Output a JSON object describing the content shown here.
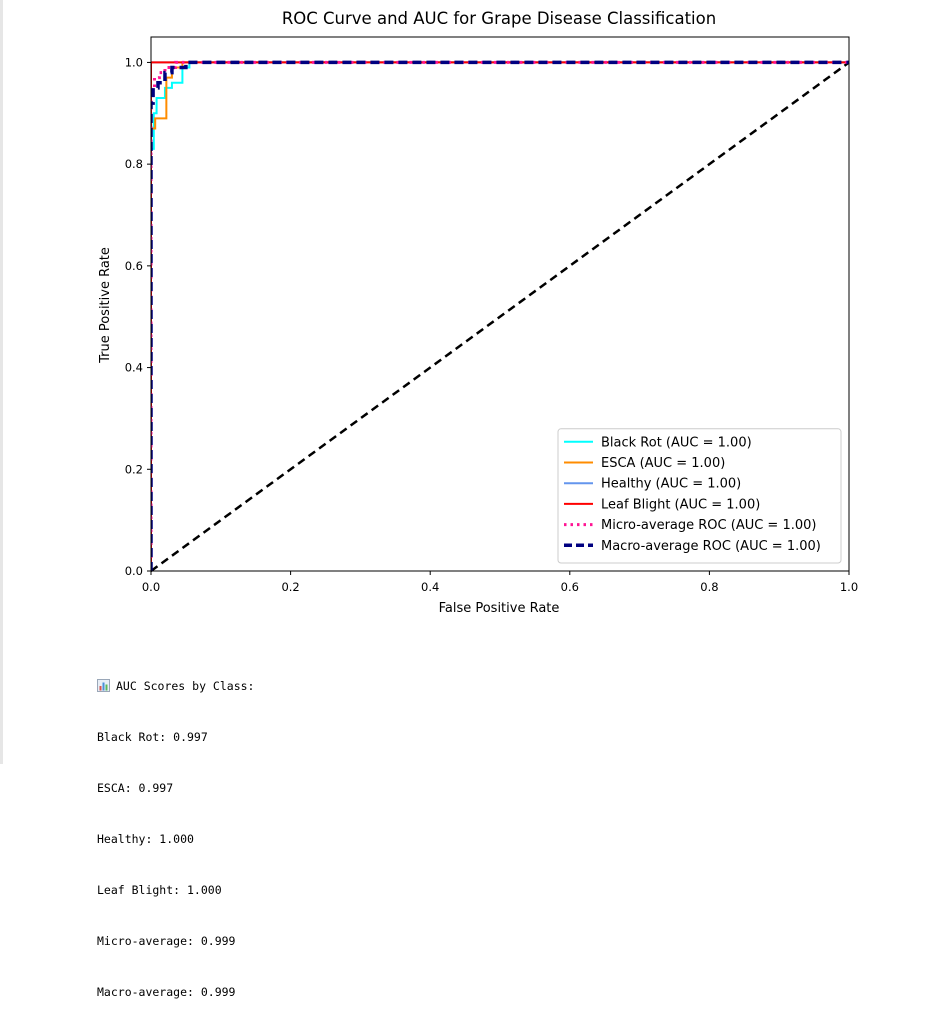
{
  "chart_data": {
    "type": "line",
    "title": "ROC Curve and AUC for Grape Disease Classification",
    "xlabel": "False Positive Rate",
    "ylabel": "True Positive Rate",
    "xlim": [
      0.0,
      1.0
    ],
    "ylim": [
      0.0,
      1.05
    ],
    "xticks": [
      0.0,
      0.2,
      0.4,
      0.6,
      0.8,
      1.0
    ],
    "xtick_labels": [
      "0.0",
      "0.2",
      "0.4",
      "0.6",
      "0.8",
      "1.0"
    ],
    "yticks": [
      0.0,
      0.2,
      0.4,
      0.6,
      0.8,
      1.0
    ],
    "ytick_labels": [
      "0.0",
      "0.2",
      "0.4",
      "0.6",
      "0.8",
      "1.0"
    ],
    "grid": false,
    "legend_position": "lower-right",
    "series": [
      {
        "name": "Black Rot (AUC = 1.00)",
        "color": "#00ffff",
        "style": "solid",
        "x": [
          0.0,
          0.0,
          0.004,
          0.004,
          0.008,
          0.008,
          0.012,
          0.012,
          0.02,
          0.02,
          0.03,
          0.03,
          0.04,
          0.04,
          0.045,
          0.045,
          0.055,
          0.055,
          1.0
        ],
        "y": [
          0.0,
          0.83,
          0.83,
          0.9,
          0.9,
          0.93,
          0.93,
          0.93,
          0.93,
          0.95,
          0.95,
          0.96,
          0.96,
          0.96,
          0.96,
          0.99,
          0.99,
          1.0,
          1.0
        ]
      },
      {
        "name": "ESCA (AUC = 1.00)",
        "color": "#ff8c00",
        "style": "solid",
        "x": [
          0.0,
          0.0,
          0.006,
          0.006,
          0.015,
          0.015,
          0.022,
          0.022,
          0.03,
          0.03,
          0.045,
          0.045,
          1.0
        ],
        "y": [
          0.0,
          0.87,
          0.87,
          0.89,
          0.89,
          0.89,
          0.89,
          0.97,
          0.97,
          0.99,
          0.99,
          1.0,
          1.0
        ]
      },
      {
        "name": "Healthy (AUC = 1.00)",
        "color": "#6495ed",
        "style": "solid",
        "x": [
          0.0,
          0.0,
          1.0
        ],
        "y": [
          0.0,
          1.0,
          1.0
        ]
      },
      {
        "name": "Leaf Blight (AUC = 1.00)",
        "color": "#ff0000",
        "style": "solid",
        "x": [
          0.0,
          0.0,
          1.0
        ],
        "y": [
          0.0,
          1.0,
          1.0
        ]
      },
      {
        "name": "Micro-average ROC (AUC = 1.00)",
        "color": "#ff1493",
        "style": "dotted",
        "x": [
          0.0,
          0.0,
          0.005,
          0.005,
          0.012,
          0.012,
          0.02,
          0.02,
          0.035,
          0.035,
          1.0
        ],
        "y": [
          0.0,
          0.95,
          0.95,
          0.97,
          0.97,
          0.98,
          0.98,
          0.99,
          0.99,
          1.0,
          1.0
        ]
      },
      {
        "name": "Macro-average ROC (AUC = 1.00)",
        "color": "#000080",
        "style": "dashed",
        "x": [
          0.0,
          0.0,
          0.003,
          0.003,
          0.01,
          0.01,
          0.02,
          0.02,
          0.03,
          0.03,
          0.05,
          0.05,
          1.0
        ],
        "y": [
          0.0,
          0.92,
          0.92,
          0.95,
          0.95,
          0.96,
          0.96,
          0.98,
          0.98,
          0.99,
          0.99,
          1.0,
          1.0
        ]
      }
    ],
    "reference_line": {
      "color": "#000000",
      "style": "dashed",
      "x": [
        0.0,
        1.0
      ],
      "y": [
        0.0,
        1.0
      ]
    }
  },
  "output": {
    "heading": "AUC Scores by Class:",
    "heading_icon": "bar-chart-icon",
    "lines": [
      "Black Rot: 0.997",
      "ESCA: 0.997",
      "Healthy: 1.000",
      "Leaf Blight: 1.000",
      "Micro-average: 0.999",
      "Macro-average: 0.999"
    ]
  }
}
